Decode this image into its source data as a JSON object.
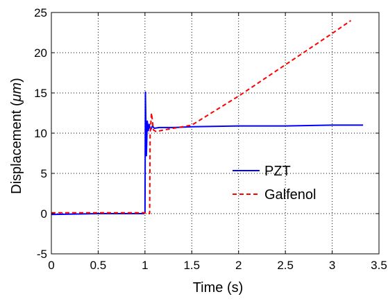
{
  "chart_data": {
    "type": "line",
    "title": "",
    "xlabel": "Time (s)",
    "ylabel": "Displacement (μm)",
    "ylabel_parts": {
      "prefix": "Displacement (",
      "unit": "μm",
      "suffix": ")"
    },
    "xlim": [
      0,
      3.5
    ],
    "ylim": [
      -5,
      25
    ],
    "xticks": [
      0,
      0.5,
      1,
      1.5,
      2,
      2.5,
      3,
      3.5
    ],
    "xtick_labels": [
      "0",
      "0.5",
      "1",
      "1.5",
      "2",
      "2.5",
      "3",
      "3.5"
    ],
    "yticks": [
      -5,
      0,
      5,
      10,
      15,
      20,
      25
    ],
    "ytick_labels": [
      "-5",
      "0",
      "5",
      "10",
      "15",
      "20",
      "25"
    ],
    "grid": true,
    "grid_style": "dotted",
    "legend_position": "center-right",
    "series": [
      {
        "name": "PZT",
        "color": "#0000ff",
        "line_style": "solid",
        "x": [
          0.0,
          0.5,
          0.99,
          1.0,
          1.005,
          1.015,
          1.025,
          1.035,
          1.045,
          1.06,
          1.08,
          1.1,
          1.15,
          1.2,
          1.3,
          1.5,
          2.0,
          2.5,
          3.0,
          3.33
        ],
        "y": [
          -0.1,
          0.0,
          0.0,
          0.2,
          15.1,
          7.2,
          11.5,
          10.3,
          11.1,
          10.4,
          10.9,
          10.6,
          10.7,
          10.7,
          10.7,
          10.8,
          10.9,
          10.9,
          11.0,
          11.0
        ]
      },
      {
        "name": "Galfenol",
        "color": "#ff0000",
        "line_style": "dashed",
        "x": [
          0.0,
          0.5,
          1.0,
          1.05,
          1.055,
          1.07,
          1.09,
          1.12,
          1.2,
          1.5,
          2.0,
          2.5,
          3.0,
          3.2
        ],
        "y": [
          0.1,
          0.1,
          0.1,
          0.0,
          10.0,
          12.5,
          10.4,
          10.2,
          10.4,
          11.0,
          14.6,
          18.5,
          22.4,
          24.0
        ]
      }
    ]
  }
}
